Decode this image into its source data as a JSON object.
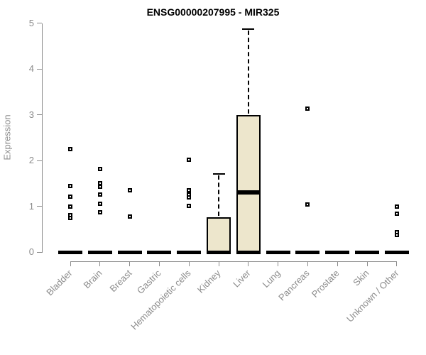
{
  "title": "ENSG00000207995 - MIR325",
  "chart_data": {
    "type": "boxplot",
    "title": "ENSG00000207995 - MIR325",
    "xlabel": "",
    "ylabel": "Expression",
    "ylim": [
      0,
      5
    ],
    "y_ticks": [
      "0",
      "1",
      "2",
      "3",
      "4",
      "5"
    ],
    "grid": false,
    "legend": null,
    "categories": [
      "Bladder",
      "Brain",
      "Breast",
      "Gastric",
      "Hematopoietic cells",
      "Kidney",
      "Liver",
      "Lung",
      "Pancreas",
      "Prostate",
      "Skin",
      "Unknown / Other"
    ],
    "series": [
      {
        "category": "Bladder",
        "whisker_low": 0,
        "q1": 0,
        "median": 0,
        "q3": 0,
        "whisker_high": 0,
        "outliers": [
          2.25,
          1.45,
          1.21,
          0.99,
          0.8,
          0.74
        ]
      },
      {
        "category": "Brain",
        "whisker_low": 0,
        "q1": 0,
        "median": 0,
        "q3": 0,
        "whisker_high": 0,
        "outliers": [
          1.81,
          1.5,
          1.42,
          1.26,
          1.06,
          0.87
        ]
      },
      {
        "category": "Breast",
        "whisker_low": 0,
        "q1": 0,
        "median": 0,
        "q3": 0,
        "whisker_high": 0,
        "outliers": [
          1.35,
          0.78
        ]
      },
      {
        "category": "Gastric",
        "whisker_low": 0,
        "q1": 0,
        "median": 0,
        "q3": 0,
        "whisker_high": 0,
        "outliers": []
      },
      {
        "category": "Hematopoietic cells",
        "whisker_low": 0,
        "q1": 0,
        "median": 0,
        "q3": 0,
        "whisker_high": 0,
        "outliers": [
          2.02,
          1.35,
          1.26,
          1.19,
          1.01
        ]
      },
      {
        "category": "Kidney",
        "whisker_low": 0,
        "q1": 0,
        "median": 0,
        "q3": 0.76,
        "whisker_high": 1.71,
        "outliers": []
      },
      {
        "category": "Liver",
        "whisker_low": 0,
        "q1": 0,
        "median": 1.3,
        "q3": 3.0,
        "whisker_high": 4.87,
        "outliers": []
      },
      {
        "category": "Lung",
        "whisker_low": 0,
        "q1": 0,
        "median": 0,
        "q3": 0,
        "whisker_high": 0,
        "outliers": []
      },
      {
        "category": "Pancreas",
        "whisker_low": 0,
        "q1": 0,
        "median": 0,
        "q3": 0,
        "whisker_high": 0,
        "outliers": [
          3.14,
          1.04
        ]
      },
      {
        "category": "Prostate",
        "whisker_low": 0,
        "q1": 0,
        "median": 0,
        "q3": 0,
        "whisker_high": 0,
        "outliers": []
      },
      {
        "category": "Skin",
        "whisker_low": 0,
        "q1": 0,
        "median": 0,
        "q3": 0,
        "whisker_high": 0,
        "outliers": []
      },
      {
        "category": "Unknown / Other",
        "whisker_low": 0,
        "q1": 0,
        "median": 0,
        "q3": 0,
        "whisker_high": 0,
        "outliers": [
          1.0,
          0.84,
          0.43,
          0.38
        ]
      }
    ],
    "colors": {
      "box_fill": "#EDE6CC",
      "box_border": "#000000",
      "median": "#000000",
      "outlier": "#000000",
      "axis": "#8C8C8C",
      "tick_label": "#8C8C8C",
      "title": "#000000",
      "background": "#FFFFFF"
    }
  }
}
